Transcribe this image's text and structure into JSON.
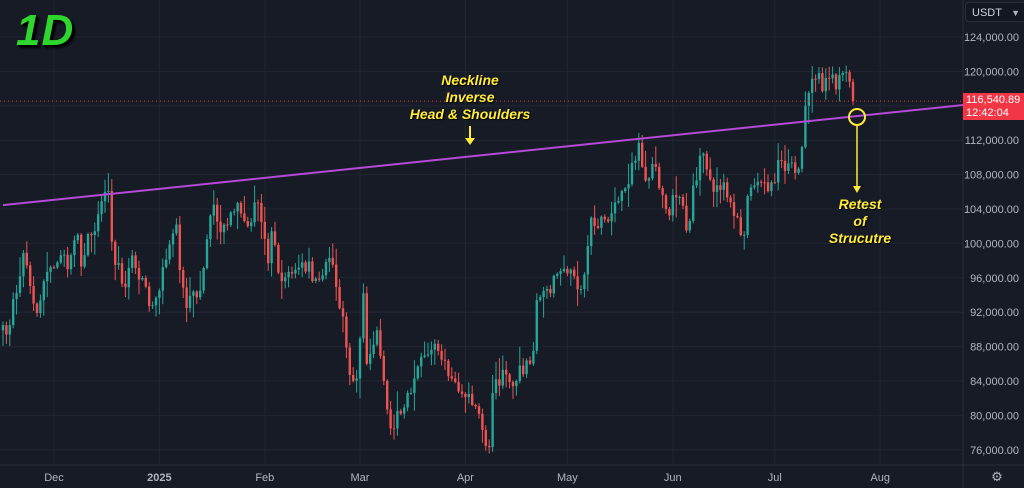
{
  "timeframe_label": "1D",
  "currency_selector": {
    "value": "USDT"
  },
  "last_price": {
    "value": "116,540.89",
    "countdown": "12:42:04"
  },
  "annotations": {
    "neckline": [
      "Neckline",
      "Inverse",
      "Head & Shoulders"
    ],
    "retest": [
      "Retest",
      "of",
      "Strucutre"
    ]
  },
  "colors": {
    "up": "#26a69a",
    "down": "#ef5350",
    "neckline": "#b44ad6",
    "annotation": "#ffeb3b",
    "timeframe": "#2ed62e"
  },
  "chart_data": {
    "type": "candlestick",
    "interval": "1D",
    "ylim": [
      74500,
      126500
    ],
    "y_ticks": [
      "124,000.00",
      "120,000.00",
      "116,000.00",
      "112,000.00",
      "108,000.00",
      "104,000.00",
      "100,000.00",
      "96,000.00",
      "92,000.00",
      "88,000.00",
      "84,000.00",
      "80,000.00",
      "76,000.00"
    ],
    "y_tick_values": [
      124000,
      120000,
      116000,
      112000,
      108000,
      104000,
      100000,
      96000,
      92000,
      88000,
      84000,
      80000,
      76000
    ],
    "x_ticks": [
      {
        "label": "Dec",
        "date": "2024-12-01"
      },
      {
        "label": "2025",
        "date": "2025-01-01",
        "bold": true
      },
      {
        "label": "Feb",
        "date": "2025-02-01"
      },
      {
        "label": "Mar",
        "date": "2025-03-01"
      },
      {
        "label": "Apr",
        "date": "2025-04-01"
      },
      {
        "label": "May",
        "date": "2025-05-01"
      },
      {
        "label": "Jun",
        "date": "2025-06-01"
      },
      {
        "label": "Jul",
        "date": "2025-07-01"
      },
      {
        "label": "Aug",
        "date": "2025-08-01"
      }
    ],
    "x_range": [
      "2024-11-16",
      "2025-08-28"
    ],
    "close_keypoints": [
      [
        "2024-11-16",
        90500
      ],
      [
        "2024-11-18",
        90500
      ],
      [
        "2024-11-22",
        98900
      ],
      [
        "2024-11-25",
        93000
      ],
      [
        "2024-11-26",
        91900
      ],
      [
        "2024-11-28",
        95600
      ],
      [
        "2024-12-01",
        97200
      ],
      [
        "2024-12-04",
        98700
      ],
      [
        "2024-12-05",
        97000
      ],
      [
        "2024-12-08",
        101000
      ],
      [
        "2024-12-09",
        97300
      ],
      [
        "2024-12-11",
        101100
      ],
      [
        "2024-12-13",
        101400
      ],
      [
        "2024-12-16",
        106000
      ],
      [
        "2024-12-17",
        106100
      ],
      [
        "2024-12-18",
        100200
      ],
      [
        "2024-12-19",
        97500
      ],
      [
        "2024-12-20",
        97700
      ],
      [
        "2024-12-22",
        94900
      ],
      [
        "2024-12-24",
        98600
      ],
      [
        "2024-12-26",
        95800
      ],
      [
        "2024-12-30",
        92800
      ],
      [
        "2025-01-01",
        94500
      ],
      [
        "2025-01-03",
        98100
      ],
      [
        "2025-01-06",
        102200
      ],
      [
        "2025-01-07",
        96900
      ],
      [
        "2025-01-09",
        92500
      ],
      [
        "2025-01-13",
        94500
      ],
      [
        "2025-01-15",
        100500
      ],
      [
        "2025-01-17",
        104500
      ],
      [
        "2025-01-19",
        101300
      ],
      [
        "2025-01-20",
        102200
      ],
      [
        "2025-01-22",
        103600
      ],
      [
        "2025-01-24",
        104700
      ],
      [
        "2025-01-26",
        102600
      ],
      [
        "2025-01-27",
        102000
      ],
      [
        "2025-01-30",
        104700
      ],
      [
        "2025-02-02",
        97700
      ],
      [
        "2025-02-03",
        101400
      ],
      [
        "2025-02-05",
        96600
      ],
      [
        "2025-02-09",
        96500
      ],
      [
        "2025-02-12",
        97800
      ],
      [
        "2025-02-17",
        95800
      ],
      [
        "2025-02-20",
        98300
      ],
      [
        "2025-02-24",
        91500
      ],
      [
        "2025-02-26",
        84700
      ],
      [
        "2025-02-28",
        84300
      ],
      [
        "2025-03-02",
        94200
      ],
      [
        "2025-03-03",
        86000
      ],
      [
        "2025-03-06",
        89900
      ],
      [
        "2025-03-09",
        80700
      ],
      [
        "2025-03-10",
        78500
      ],
      [
        "2025-03-13",
        80200
      ],
      [
        "2025-03-16",
        82600
      ],
      [
        "2025-03-19",
        86800
      ],
      [
        "2025-03-24",
        87500
      ],
      [
        "2025-03-28",
        84300
      ],
      [
        "2025-03-31",
        82500
      ],
      [
        "2025-04-02",
        82500
      ],
      [
        "2025-04-06",
        78300
      ],
      [
        "2025-04-08",
        76300
      ],
      [
        "2025-04-09",
        82600
      ],
      [
        "2025-04-12",
        85300
      ],
      [
        "2025-04-16",
        84000
      ],
      [
        "2025-04-21",
        87500
      ],
      [
        "2025-04-22",
        93400
      ],
      [
        "2025-04-25",
        94700
      ],
      [
        "2025-05-01",
        96500
      ],
      [
        "2025-05-05",
        94700
      ],
      [
        "2025-05-08",
        103000
      ],
      [
        "2025-05-12",
        102800
      ],
      [
        "2025-05-14",
        103500
      ],
      [
        "2025-05-18",
        106400
      ],
      [
        "2025-05-21",
        109600
      ],
      [
        "2025-05-22",
        111700
      ],
      [
        "2025-05-24",
        107300
      ],
      [
        "2025-05-27",
        108900
      ],
      [
        "2025-05-30",
        104000
      ],
      [
        "2025-06-03",
        105400
      ],
      [
        "2025-06-05",
        101500
      ],
      [
        "2025-06-09",
        110200
      ],
      [
        "2025-06-11",
        108600
      ],
      [
        "2025-06-13",
        106000
      ],
      [
        "2025-06-16",
        107100
      ],
      [
        "2025-06-18",
        104800
      ],
      [
        "2025-06-22",
        101000
      ],
      [
        "2025-06-23",
        105500
      ],
      [
        "2025-06-27",
        107100
      ],
      [
        "2025-06-30",
        107100
      ],
      [
        "2025-07-03",
        109600
      ],
      [
        "2025-07-07",
        108200
      ],
      [
        "2025-07-09",
        111200
      ],
      [
        "2025-07-10",
        116000
      ],
      [
        "2025-07-11",
        117500
      ],
      [
        "2025-07-13",
        119100
      ],
      [
        "2025-07-14",
        119800
      ],
      [
        "2025-07-15",
        117700
      ],
      [
        "2025-07-17",
        119200
      ],
      [
        "2025-07-19",
        117900
      ],
      [
        "2025-07-22",
        119900
      ],
      [
        "2025-07-23",
        118800
      ],
      [
        "2025-07-24",
        116540.89
      ]
    ],
    "neckline": {
      "label": "Neckline Inverse Head & Shoulders",
      "points": [
        [
          "2024-11-16",
          104450
        ],
        [
          "2025-08-28",
          116200
        ]
      ]
    },
    "retest_marker": {
      "date": "2025-07-24",
      "price": 114700
    }
  }
}
